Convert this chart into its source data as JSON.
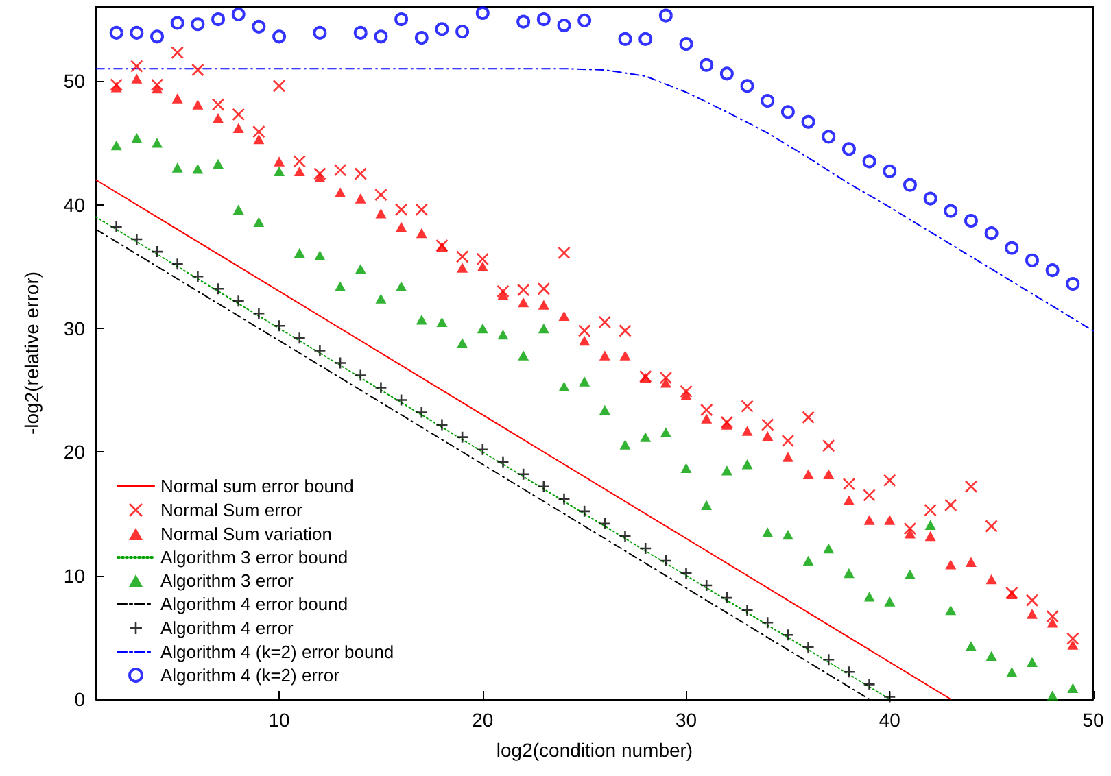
{
  "chart_data": {
    "type": "scatter",
    "xlabel": "log2(condition number)",
    "ylabel": "-log2(relative error)",
    "xlim": [
      1,
      50
    ],
    "xticks": [
      10,
      20,
      30,
      40,
      50
    ],
    "ylim": [
      0,
      56
    ],
    "yticks": [
      0,
      10,
      20,
      30,
      40,
      50
    ],
    "grid": false,
    "legend": "bottom left",
    "series": [
      {
        "name": "Normal sum error bound",
        "type": "line",
        "color": "#ff0000",
        "line_style": "solid",
        "marker": "none",
        "x": [
          1,
          43
        ],
        "values": [
          42,
          0
        ]
      },
      {
        "name": "Normal Sum error",
        "color": "#ff0000",
        "marker": "cross",
        "x": [
          2,
          3,
          4,
          5,
          6,
          7,
          8,
          9,
          10,
          11,
          12,
          13,
          14,
          15,
          16,
          17,
          18,
          19,
          20,
          21,
          22,
          23,
          24,
          25,
          26,
          27,
          28,
          29,
          30,
          31,
          32,
          33,
          34,
          35,
          36,
          37,
          38,
          39,
          40,
          41,
          42,
          43,
          44,
          45,
          46,
          47,
          48,
          49
        ],
        "values": [
          49.7,
          51.2,
          49.7,
          52.3,
          50.9,
          48.1,
          47.3,
          45.9,
          49.6,
          43.5,
          42.5,
          42.8,
          42.5,
          40.8,
          39.6,
          39.6,
          36.7,
          35.8,
          35.6,
          33.0,
          33.1,
          33.2,
          36.1,
          29.8,
          30.5,
          29.8,
          26.1,
          26.0,
          24.9,
          23.4,
          22.4,
          23.7,
          22.2,
          20.9,
          22.8,
          20.5,
          17.4,
          16.5,
          17.7,
          13.8,
          15.3,
          15.7,
          17.2,
          14.0,
          8.6,
          8.0,
          6.7,
          4.9
        ]
      },
      {
        "name": "Normal Sum variation",
        "color": "#ff0000",
        "marker": "triangle",
        "x": [
          2,
          3,
          4,
          5,
          6,
          7,
          8,
          9,
          10,
          11,
          12,
          13,
          14,
          15,
          16,
          17,
          18,
          19,
          20,
          21,
          22,
          23,
          24,
          25,
          26,
          27,
          28,
          29,
          30,
          31,
          32,
          33,
          34,
          35,
          36,
          37,
          38,
          39,
          40,
          41,
          42,
          43,
          44,
          45,
          46,
          47,
          48,
          49
        ],
        "values": [
          49.5,
          50.2,
          49.4,
          48.6,
          48.1,
          47.0,
          46.2,
          45.3,
          43.5,
          42.7,
          42.2,
          41.0,
          40.5,
          39.3,
          38.2,
          37.7,
          36.6,
          34.9,
          35.0,
          32.7,
          32.1,
          31.9,
          31.0,
          29.0,
          27.8,
          27.8,
          26.0,
          25.6,
          24.6,
          22.7,
          22.2,
          21.7,
          21.3,
          19.6,
          18.2,
          18.2,
          16.1,
          14.5,
          14.5,
          13.4,
          13.2,
          10.9,
          11.1,
          9.7,
          8.5,
          6.9,
          6.2,
          4.4
        ]
      },
      {
        "name": "Algorithm 3 error bound",
        "type": "line",
        "color": "#00a000",
        "line_style": "dotted",
        "marker": "none",
        "x": [
          1,
          40
        ],
        "values": [
          39,
          0
        ]
      },
      {
        "name": "Algorithm 3 error",
        "color": "#00a000",
        "marker": "triangle",
        "x": [
          2,
          3,
          4,
          5,
          6,
          7,
          8,
          9,
          10,
          11,
          12,
          13,
          14,
          15,
          16,
          17,
          18,
          19,
          20,
          21,
          22,
          23,
          24,
          25,
          26,
          27,
          28,
          29,
          30,
          31,
          32,
          33,
          34,
          35,
          36,
          37,
          38,
          39,
          40,
          41,
          42,
          43,
          44,
          45,
          46,
          47,
          48,
          49
        ],
        "values": [
          44.8,
          45.4,
          45.0,
          43.0,
          42.9,
          43.3,
          39.6,
          38.6,
          42.7,
          36.1,
          35.9,
          33.4,
          34.8,
          32.4,
          33.4,
          30.7,
          30.5,
          28.8,
          30.0,
          29.5,
          27.8,
          30.0,
          25.3,
          25.7,
          23.4,
          20.6,
          21.2,
          21.6,
          18.7,
          15.7,
          18.5,
          19.0,
          13.5,
          13.3,
          11.2,
          12.2,
          10.2,
          8.3,
          7.9,
          10.1,
          14.1,
          7.2,
          4.3,
          3.5,
          2.2,
          3.0,
          0.3,
          0.9
        ]
      },
      {
        "name": "Algorithm 4 error bound",
        "type": "line",
        "color": "#000000",
        "line_style": "dashed",
        "marker": "none",
        "x": [
          1,
          39
        ],
        "values": [
          38,
          0
        ]
      },
      {
        "name": "Algorithm 4 error",
        "color": "#000000",
        "marker": "cross",
        "x": [
          2,
          3,
          4,
          5,
          6,
          7,
          8,
          9,
          10,
          11,
          12,
          13,
          14,
          15,
          16,
          17,
          18,
          19,
          20,
          21,
          22,
          23,
          24,
          25,
          26,
          27,
          28,
          29,
          30,
          31,
          32,
          33,
          34,
          35,
          36,
          37,
          38,
          39,
          40
        ],
        "values": [
          38.2,
          37.2,
          36.2,
          35.2,
          34.2,
          33.2,
          32.2,
          31.2,
          30.2,
          29.2,
          28.2,
          27.2,
          26.2,
          25.2,
          24.2,
          23.2,
          22.2,
          21.2,
          20.2,
          19.2,
          18.2,
          17.2,
          16.2,
          15.2,
          14.2,
          13.2,
          12.2,
          11.2,
          10.2,
          9.2,
          8.2,
          7.2,
          6.2,
          5.2,
          4.2,
          3.2,
          2.2,
          1.2,
          0.2
        ]
      },
      {
        "name": "Algorithm 4 (k=2) error bound",
        "type": "line",
        "color": "#0000ff",
        "line_style": "dashed",
        "marker": "none",
        "x": [
          1,
          24,
          26,
          28,
          30,
          32,
          34,
          36,
          38,
          40,
          45,
          50
        ],
        "values": [
          51,
          51,
          50.9,
          50.4,
          49.1,
          47.5,
          45.8,
          43.8,
          41.7,
          39.8,
          34.8,
          29.8
        ]
      },
      {
        "name": "Algorithm 4 (k=2) error",
        "color": "#0000ff",
        "marker": "circle",
        "x": [
          2,
          3,
          4,
          5,
          6,
          7,
          8,
          9,
          10,
          12,
          14,
          15,
          16,
          17,
          18,
          19,
          20,
          22,
          23,
          24,
          25,
          27,
          28,
          29,
          30,
          31,
          32,
          33,
          34,
          35,
          36,
          37,
          38,
          39,
          40,
          41,
          42,
          43,
          44,
          45,
          46,
          47,
          48,
          49
        ],
        "values": [
          53.9,
          53.9,
          53.6,
          54.7,
          54.6,
          55.0,
          55.4,
          54.4,
          53.6,
          53.9,
          53.9,
          53.6,
          55.0,
          53.5,
          54.2,
          54.0,
          55.5,
          54.8,
          55.0,
          54.5,
          54.9,
          53.4,
          53.4,
          55.3,
          53.0,
          51.3,
          50.6,
          49.6,
          48.4,
          47.5,
          46.7,
          45.5,
          44.5,
          43.5,
          42.7,
          41.6,
          40.5,
          39.5,
          38.7,
          37.7,
          36.5,
          35.5,
          34.7,
          33.6
        ]
      }
    ]
  }
}
